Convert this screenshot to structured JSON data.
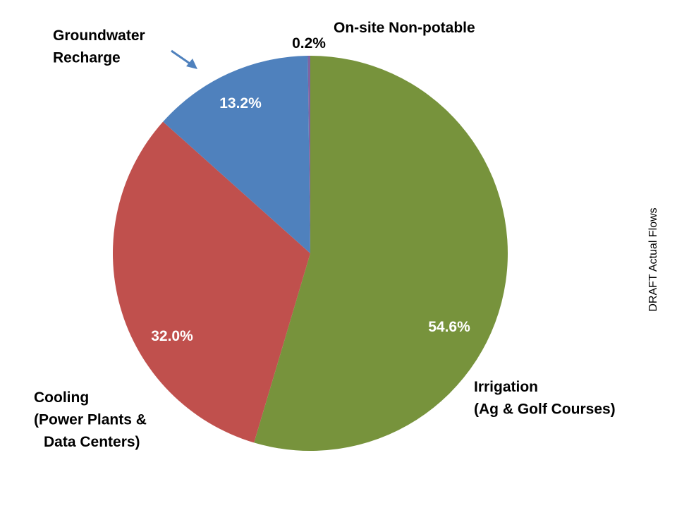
{
  "chart_data": {
    "type": "pie",
    "title": "",
    "side_note": "DRAFT Actual Flows",
    "start_angle": "top",
    "direction": "clockwise",
    "slices": [
      {
        "name": "Irrigation",
        "label_lines": [
          "Irrigation",
          "(Ag & Golf Courses)"
        ],
        "value": 54.6,
        "pct_label": "54.6%",
        "color": "#77933C",
        "pct_color": "#FFFFFF"
      },
      {
        "name": "Cooling",
        "label_lines": [
          "Cooling",
          "(Power Plants &",
          "Data Centers)"
        ],
        "value": 32.0,
        "pct_label": "32.0%",
        "color": "#C0504D",
        "pct_color": "#FFFFFF"
      },
      {
        "name": "Groundwater Recharge",
        "label_lines": [
          "Groundwater",
          "Recharge"
        ],
        "value": 13.2,
        "pct_label": "13.2%",
        "color": "#4F81BD",
        "pct_color": "#FFFFFF"
      },
      {
        "name": "On-site Non-potable",
        "label_lines": [
          "On-site Non-potable"
        ],
        "value": 0.2,
        "pct_label": "0.2%",
        "color": "#8064A2",
        "pct_color": "#000000"
      }
    ],
    "arrow_color": "#4F81BD"
  }
}
